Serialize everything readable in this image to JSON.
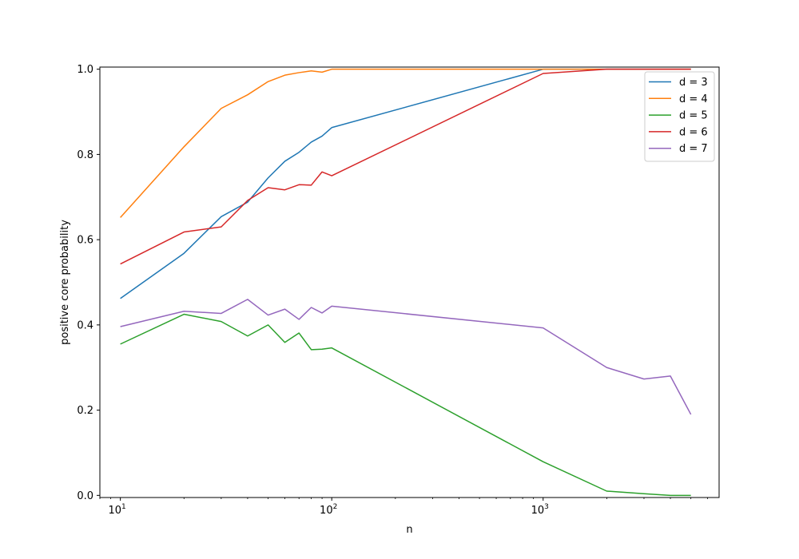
{
  "chart_data": {
    "type": "line",
    "xscale": "log",
    "xlabel": "n",
    "ylabel": "positive core probability",
    "xlim": [
      8,
      6800
    ],
    "ylim": [
      -0.005,
      1.005
    ],
    "x_major_ticks": [
      {
        "value": 10,
        "base": "10",
        "exp": "1"
      },
      {
        "value": 100,
        "base": "10",
        "exp": "2"
      },
      {
        "value": 1000,
        "base": "10",
        "exp": "3"
      }
    ],
    "y_ticks": [
      {
        "value": 0.0,
        "label": "0.0"
      },
      {
        "value": 0.2,
        "label": "0.2"
      },
      {
        "value": 0.4,
        "label": "0.4"
      },
      {
        "value": 0.6,
        "label": "0.6"
      },
      {
        "value": 0.8,
        "label": "0.8"
      },
      {
        "value": 1.0,
        "label": "1.0"
      }
    ],
    "grid": false,
    "legend_position": "top-right",
    "x": [
      10,
      20,
      30,
      40,
      50,
      60,
      70,
      80,
      90,
      100,
      1000,
      2000,
      3000,
      4000,
      5000
    ],
    "series": [
      {
        "name": "d = 3",
        "color": "#1f77b4",
        "values": [
          0.462,
          0.568,
          0.654,
          0.688,
          0.745,
          0.784,
          0.805,
          0.829,
          0.843,
          0.863,
          1.0,
          1.0,
          1.0,
          1.0,
          1.0
        ]
      },
      {
        "name": "d = 4",
        "color": "#ff7f0e",
        "values": [
          0.652,
          0.818,
          0.908,
          0.94,
          0.971,
          0.986,
          0.992,
          0.996,
          0.993,
          1.0,
          1.0,
          1.0,
          1.0,
          1.0,
          1.0
        ]
      },
      {
        "name": "d = 5",
        "color": "#2ca02c",
        "values": [
          0.355,
          0.425,
          0.408,
          0.374,
          0.4,
          0.359,
          0.381,
          0.342,
          0.343,
          0.346,
          0.079,
          0.01,
          0.004,
          0.0,
          0.0
        ]
      },
      {
        "name": "d = 6",
        "color": "#d62728",
        "values": [
          0.543,
          0.618,
          0.63,
          0.692,
          0.722,
          0.717,
          0.729,
          0.728,
          0.759,
          0.75,
          0.99,
          1.0,
          1.0,
          1.0,
          1.0
        ]
      },
      {
        "name": "d = 7",
        "color": "#9467bd",
        "values": [
          0.396,
          0.432,
          0.427,
          0.46,
          0.423,
          0.437,
          0.413,
          0.441,
          0.428,
          0.444,
          0.393,
          0.3,
          0.273,
          0.28,
          0.19
        ]
      }
    ]
  }
}
